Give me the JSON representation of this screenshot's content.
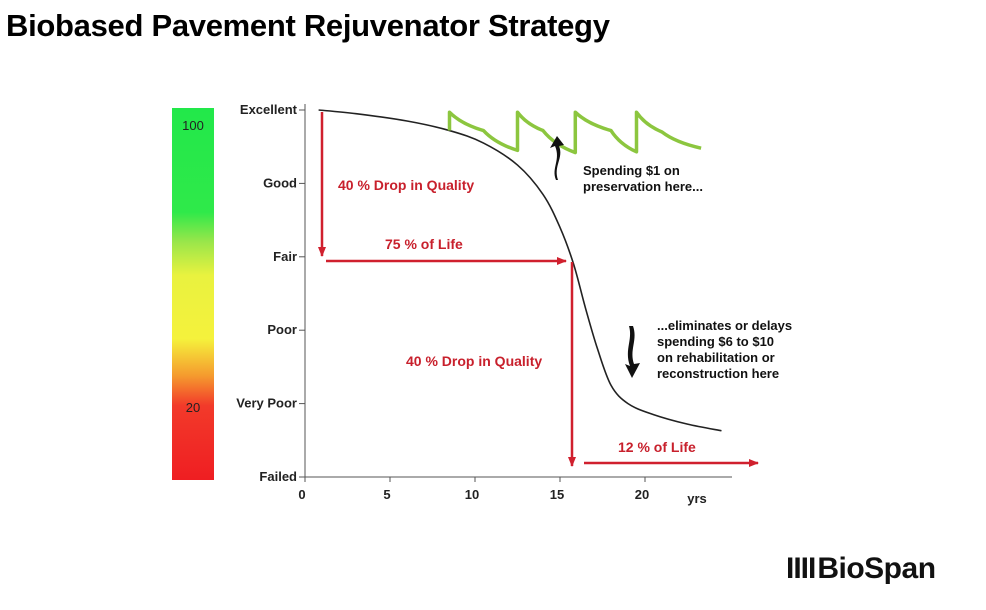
{
  "slide": {
    "title": "Biobased Pavement Rejuvenator Strategy",
    "logo_text": "BioSpan",
    "logo_mark": "IIII"
  },
  "scale_bar": {
    "top_label": "100",
    "bottom_label": "20",
    "colors": [
      "#22e84a",
      "#e9f23f",
      "#f59a2e",
      "#ef1e22"
    ]
  },
  "chart_data": {
    "type": "line",
    "xlabel": "yrs",
    "ylabel": "",
    "x_ticks": [
      0,
      5,
      10,
      15,
      20
    ],
    "xlim": [
      0,
      25
    ],
    "y_categories": [
      "Excellent",
      "Good",
      "Fair",
      "Poor",
      "Very Poor",
      "Failed"
    ],
    "series": [
      {
        "points": [
          [
            0.8,
            5.0
          ],
          [
            3,
            4.95
          ],
          [
            6,
            4.85
          ],
          [
            8.5,
            4.72
          ],
          [
            10.5,
            4.55
          ],
          [
            12.5,
            4.25
          ],
          [
            14,
            3.85
          ],
          [
            15,
            3.4
          ],
          [
            15.8,
            2.9
          ],
          [
            16.5,
            2.3
          ],
          [
            17.2,
            1.75
          ],
          [
            18,
            1.25
          ],
          [
            19,
            1.0
          ],
          [
            20.5,
            0.85
          ],
          [
            22.5,
            0.72
          ],
          [
            24.5,
            0.63
          ]
        ]
      },
      {
        "points": [
          [
            8.5,
            4.72
          ],
          [
            8.5,
            4.97
          ],
          [
            10.5,
            4.72
          ],
          [
            12.5,
            4.45
          ],
          [
            12.5,
            4.97
          ],
          [
            14,
            4.72
          ],
          [
            15.9,
            4.42
          ],
          [
            15.9,
            4.97
          ],
          [
            18,
            4.72
          ],
          [
            19.5,
            4.43
          ],
          [
            19.5,
            4.97
          ],
          [
            21,
            4.7
          ],
          [
            23.3,
            4.48
          ]
        ]
      }
    ],
    "annotations": [
      {
        "text": "40 % Drop in Quality",
        "x": 1.1,
        "y": 4.0
      },
      {
        "text": "75 % of Life",
        "x": 7.5,
        "y": 3.15
      },
      {
        "text": "40 % Drop in Quality",
        "x": 11.5,
        "y": 1.55
      },
      {
        "text": "12 % of Life",
        "x": 19.0,
        "y": 0.38
      }
    ],
    "notes": [
      {
        "lines": [
          "Spending $1 on",
          "preservation here..."
        ]
      },
      {
        "lines": [
          "...eliminates or delays",
          "spending $6 to $10",
          "on rehabilitation or",
          "reconstruction here"
        ]
      }
    ],
    "colors": {
      "deterioration": "#222222",
      "preservation": "#8cc63f",
      "arrows": "#d0202e",
      "annotation_text": "#c8202c"
    }
  }
}
